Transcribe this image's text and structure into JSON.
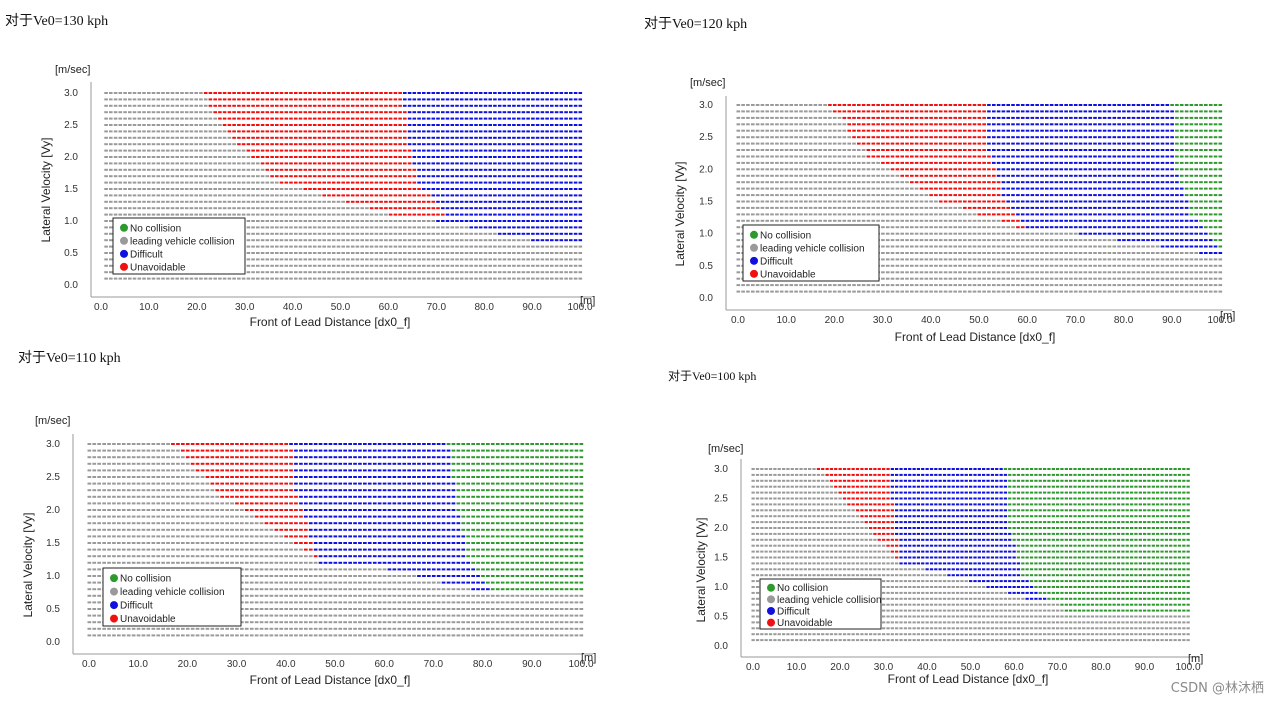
{
  "watermark": "CSDN @林沐栖",
  "legend_colors": {
    "No collision": "#2e9a2e",
    "leading vehicle collision": "#9a9a9a",
    "Difficult": "#1010e0",
    "Unavoidable": "#f01010"
  },
  "chart_data": [
    {
      "type": "scatter",
      "title": "对于Ve0=130 kph",
      "xlabel": "Front of Lead Distance [dx0_f]",
      "ylabel": "Lateral Velocity [Vy]",
      "x_unit": "[m]",
      "y_unit": "[m/sec]",
      "xlim": [
        0,
        100
      ],
      "ylim": [
        0,
        3.0
      ],
      "x_ticks": [
        "0.0",
        "10.0",
        "20.0",
        "30.0",
        "40.0",
        "50.0",
        "60.0",
        "70.0",
        "80.0",
        "90.0",
        "100.0"
      ],
      "y_ticks": [
        "0.0",
        "0.5",
        "1.0",
        "1.5",
        "2.0",
        "2.5",
        "3.0"
      ],
      "legend": [
        "No collision",
        "leading vehicle collision",
        "Difficult",
        "Unavoidable"
      ],
      "legend_position": "lower-left",
      "grid": {
        "x_start": 1,
        "x_end": 100,
        "rows": 30,
        "vy_min": 0.1,
        "vy_max": 3.0
      },
      "boundaries": {
        "gray_red": [
          [
            1.0,
            65
          ],
          [
            1.6,
            37
          ],
          [
            2.3,
            27
          ],
          [
            3.0,
            21
          ]
        ],
        "red_blue": [
          [
            1.0,
            73
          ],
          [
            1.6,
            66
          ],
          [
            2.3,
            64
          ],
          [
            3.0,
            63
          ]
        ],
        "blue_green": [],
        "lower_blue": [
          [
            0.65,
            93
          ],
          [
            1.0,
            70
          ]
        ]
      }
    },
    {
      "type": "scatter",
      "title": "对于Ve0=120 kph",
      "xlabel": "Front of Lead Distance [dx0_f]",
      "ylabel": "Lateral Velocity [Vy]",
      "x_unit": "[m]",
      "y_unit": "[m/sec]",
      "xlim": [
        0,
        100
      ],
      "ylim": [
        0,
        3.0
      ],
      "x_ticks": [
        "0.0",
        "10.0",
        "20.0",
        "30.0",
        "40.0",
        "50.0",
        "60.0",
        "70.0",
        "80.0",
        "90.0",
        "100.0"
      ],
      "y_ticks": [
        "0.0",
        "0.5",
        "1.0",
        "1.5",
        "2.0",
        "2.5",
        "3.0"
      ],
      "legend": [
        "No collision",
        "leading vehicle collision",
        "Difficult",
        "Unavoidable"
      ],
      "legend_position": "lower-left",
      "grid": {
        "x_start": 0,
        "x_end": 100,
        "rows": 30,
        "vy_min": 0.1,
        "vy_max": 3.0
      },
      "boundaries": {
        "gray_red": [
          [
            1.1,
            58
          ],
          [
            1.5,
            42
          ],
          [
            2.2,
            27
          ],
          [
            3.0,
            19
          ]
        ],
        "red_blue": [
          [
            1.1,
            60
          ],
          [
            1.6,
            55
          ],
          [
            2.3,
            52
          ],
          [
            3.0,
            52
          ]
        ],
        "blue_green": [
          [
            0.8,
            100
          ],
          [
            1.3,
            94
          ],
          [
            2.0,
            91
          ],
          [
            3.0,
            90
          ]
        ],
        "lower_blue": [
          [
            0.65,
            100
          ],
          [
            1.1,
            62
          ]
        ]
      }
    },
    {
      "type": "scatter",
      "title": "对于Ve0=110 kph",
      "xlabel": "Front of Lead Distance [dx0_f]",
      "ylabel": "Lateral Velocity [Vy]",
      "x_unit": "[m]",
      "y_unit": "[m/sec]",
      "xlim": [
        0,
        100
      ],
      "ylim": [
        0,
        3.0
      ],
      "x_ticks": [
        "0.0",
        "10.0",
        "20.0",
        "30.0",
        "40.0",
        "50.0",
        "60.0",
        "70.0",
        "80.0",
        "90.0",
        "100.0"
      ],
      "y_ticks": [
        "0.0",
        "0.5",
        "1.0",
        "1.5",
        "2.0",
        "2.5",
        "3.0"
      ],
      "legend": [
        "No collision",
        "leading vehicle collision",
        "Difficult",
        "Unavoidable"
      ],
      "legend_position": "lower-left",
      "grid": {
        "x_start": 0,
        "x_end": 100,
        "rows": 30,
        "vy_min": 0.1,
        "vy_max": 3.0
      },
      "boundaries": {
        "gray_red": [
          [
            1.2,
            47
          ],
          [
            1.5,
            42
          ],
          [
            2.2,
            27
          ],
          [
            3.0,
            17
          ]
        ],
        "red_blue": [
          [
            1.2,
            47
          ],
          [
            1.6,
            45
          ],
          [
            2.3,
            42
          ],
          [
            3.0,
            41
          ]
        ],
        "blue_green": [
          [
            0.75,
            82
          ],
          [
            1.3,
            77
          ],
          [
            2.0,
            75
          ],
          [
            3.0,
            73
          ]
        ],
        "lower_blue": [
          [
            0.75,
            80
          ],
          [
            1.2,
            55
          ]
        ]
      }
    },
    {
      "type": "scatter",
      "title": "对于Ve0=100 kph",
      "xlabel": "Front of Lead Distance [dx0_f]",
      "ylabel": "Lateral Velocity [Vy]",
      "x_unit": "[m]",
      "y_unit": "[m/sec]",
      "xlim": [
        0,
        100
      ],
      "ylim": [
        0,
        3.0
      ],
      "x_ticks": [
        "0.0",
        "10.0",
        "20.0",
        "30.0",
        "40.0",
        "50.0",
        "60.0",
        "70.0",
        "80.0",
        "90.0",
        "100.0"
      ],
      "y_ticks": [
        "0.0",
        "0.5",
        "1.0",
        "1.5",
        "2.0",
        "2.5",
        "3.0"
      ],
      "legend": [
        "No collision",
        "leading vehicle collision",
        "Difficult",
        "Unavoidable"
      ],
      "legend_position": "lower-left",
      "grid": {
        "x_start": 0,
        "x_end": 100,
        "rows": 30,
        "vy_min": 0.1,
        "vy_max": 3.0
      },
      "boundaries": {
        "gray_red": [
          [
            1.4,
            34
          ],
          [
            1.8,
            29
          ],
          [
            2.4,
            22
          ],
          [
            3.0,
            15
          ]
        ],
        "red_blue": [
          [
            1.4,
            34
          ],
          [
            1.9,
            33
          ],
          [
            2.5,
            32
          ],
          [
            3.0,
            32
          ]
        ],
        "blue_green": [
          [
            0.6,
            70
          ],
          [
            1.2,
            62
          ],
          [
            2.0,
            59
          ],
          [
            3.0,
            58
          ]
        ],
        "lower_blue": [
          [
            0.75,
            65
          ],
          [
            1.3,
            40
          ]
        ]
      }
    }
  ]
}
